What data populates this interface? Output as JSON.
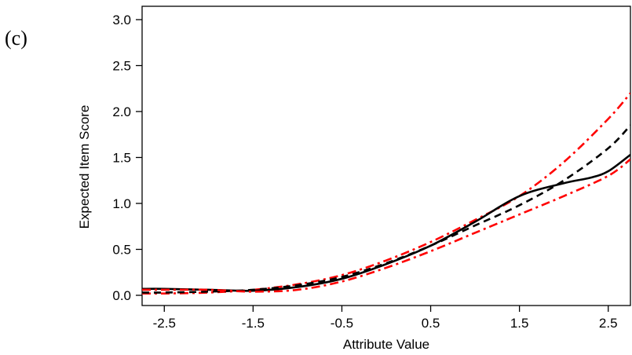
{
  "panel_label": "(c)",
  "chart_data": {
    "type": "line",
    "title": "",
    "xlabel": "Attribute Value",
    "ylabel": "Expected Item Score",
    "xlim": [
      -2.75,
      2.75
    ],
    "ylim": [
      0.0,
      3.0
    ],
    "x_ticks": [
      -2.5,
      -1.5,
      -0.5,
      0.5,
      1.5,
      2.5
    ],
    "x_tick_labels": [
      "-2.5",
      "-1.5",
      "-0.5",
      "0.5",
      "1.5",
      "2.5"
    ],
    "y_ticks": [
      0.0,
      0.5,
      1.0,
      1.5,
      2.0,
      2.5,
      3.0
    ],
    "y_tick_labels": [
      "0.0",
      "0.5",
      "1.0",
      "1.5",
      "2.0",
      "2.5",
      "3.0"
    ],
    "grid": false,
    "legend": "none",
    "series": [
      {
        "color": "#ff0000",
        "dash": "dashdot",
        "x": [
          -2.75,
          -2.5,
          -2.0,
          -1.5,
          -1.0,
          -0.5,
          0.0,
          0.5,
          1.0,
          1.5,
          2.0,
          2.5,
          2.75
        ],
        "y": [
          0.02,
          0.02,
          0.03,
          0.06,
          0.12,
          0.22,
          0.38,
          0.58,
          0.82,
          1.08,
          1.45,
          1.92,
          2.2
        ]
      },
      {
        "color": "#000000",
        "dash": "dashed",
        "x": [
          -2.75,
          -2.5,
          -2.0,
          -1.5,
          -1.0,
          -0.5,
          0.0,
          0.5,
          1.0,
          1.5,
          2.0,
          2.5,
          2.75
        ],
        "y": [
          0.03,
          0.03,
          0.04,
          0.06,
          0.11,
          0.2,
          0.35,
          0.54,
          0.76,
          0.98,
          1.25,
          1.6,
          1.85
        ]
      },
      {
        "color": "#000000",
        "dash": "solid",
        "x": [
          -2.75,
          -2.5,
          -2.0,
          -1.5,
          -1.0,
          -0.5,
          0.0,
          0.5,
          1.0,
          1.5,
          2.0,
          2.3,
          2.5,
          2.75
        ],
        "y": [
          0.07,
          0.07,
          0.06,
          0.05,
          0.09,
          0.18,
          0.34,
          0.54,
          0.8,
          1.08,
          1.22,
          1.28,
          1.35,
          1.53
        ]
      },
      {
        "color": "#ff0000",
        "dash": "dashdot",
        "x": [
          -2.75,
          -2.5,
          -2.0,
          -1.5,
          -1.0,
          -0.5,
          0.0,
          0.5,
          1.0,
          1.5,
          2.0,
          2.5,
          2.75
        ],
        "y": [
          0.06,
          0.06,
          0.06,
          0.04,
          0.06,
          0.15,
          0.3,
          0.48,
          0.68,
          0.88,
          1.08,
          1.3,
          1.48
        ]
      }
    ]
  }
}
